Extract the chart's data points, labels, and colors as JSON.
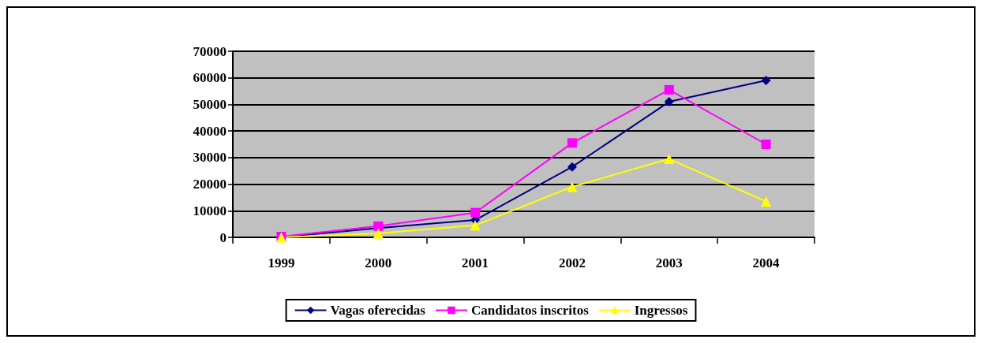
{
  "chart_data": {
    "type": "line",
    "categories": [
      "1999",
      "2000",
      "2001",
      "2002",
      "2003",
      "2004"
    ],
    "series": [
      {
        "name": "Vagas oferecidas",
        "color": "#000080",
        "marker": "diamond",
        "values": [
          100,
          3500,
          6500,
          26500,
          51000,
          59000
        ]
      },
      {
        "name": "Candidatos inscritos",
        "color": "#ff00ff",
        "marker": "square",
        "values": [
          300,
          4200,
          9300,
          35500,
          55500,
          35000
        ]
      },
      {
        "name": "Ingressos",
        "color": "#ffff00",
        "marker": "triangle",
        "values": [
          0,
          1500,
          4500,
          19000,
          29500,
          13500
        ]
      }
    ],
    "ylim": [
      0,
      70000
    ],
    "yticks": [
      0,
      10000,
      20000,
      30000,
      40000,
      50000,
      60000,
      70000
    ],
    "grid": "y",
    "legend": "bottom",
    "line_style": "solid"
  }
}
